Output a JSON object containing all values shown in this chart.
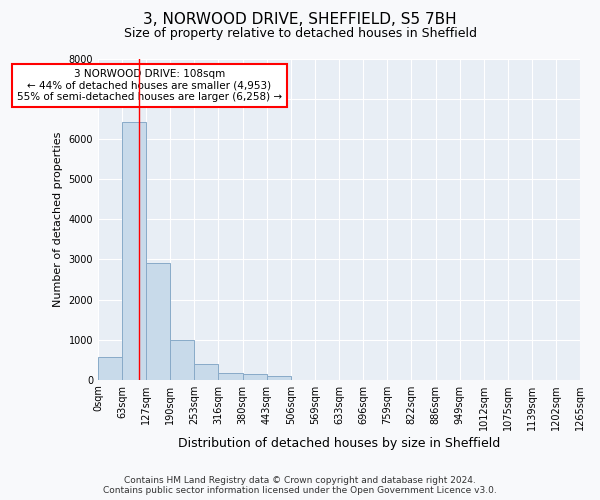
{
  "title_line1": "3, NORWOOD DRIVE, SHEFFIELD, S5 7BH",
  "title_line2": "Size of property relative to detached houses in Sheffield",
  "xlabel": "Distribution of detached houses by size in Sheffield",
  "ylabel": "Number of detached properties",
  "bar_color": "#c8daea",
  "bar_edge_color": "#88aac8",
  "bar_heights": [
    570,
    6420,
    2920,
    990,
    380,
    170,
    140,
    90,
    0,
    0,
    0,
    0,
    0,
    0,
    0,
    0,
    0,
    0,
    0,
    0
  ],
  "bin_edges": [
    0,
    63,
    127,
    190,
    253,
    316,
    380,
    443,
    506,
    569,
    633,
    696,
    759,
    822,
    886,
    949,
    1012,
    1075,
    1139,
    1202,
    1265
  ],
  "xtick_labels": [
    "0sqm",
    "63sqm",
    "127sqm",
    "190sqm",
    "253sqm",
    "316sqm",
    "380sqm",
    "443sqm",
    "506sqm",
    "569sqm",
    "633sqm",
    "696sqm",
    "759sqm",
    "822sqm",
    "886sqm",
    "949sqm",
    "1012sqm",
    "1075sqm",
    "1139sqm",
    "1202sqm",
    "1265sqm"
  ],
  "ylim": [
    0,
    8000
  ],
  "yticks": [
    0,
    1000,
    2000,
    3000,
    4000,
    5000,
    6000,
    7000,
    8000
  ],
  "red_line_x": 108,
  "annotation_text": "3 NORWOOD DRIVE: 108sqm\n← 44% of detached houses are smaller (4,953)\n55% of semi-detached houses are larger (6,258) →",
  "annotation_box_facecolor": "white",
  "annotation_box_edgecolor": "red",
  "footer_text": "Contains HM Land Registry data © Crown copyright and database right 2024.\nContains public sector information licensed under the Open Government Licence v3.0.",
  "background_color": "#f8f9fb",
  "plot_bg_color": "#e8eef5",
  "grid_color": "#ffffff",
  "title1_fontsize": 11,
  "title2_fontsize": 9,
  "ylabel_fontsize": 8,
  "xlabel_fontsize": 9,
  "tick_fontsize": 7,
  "footer_fontsize": 6.5
}
